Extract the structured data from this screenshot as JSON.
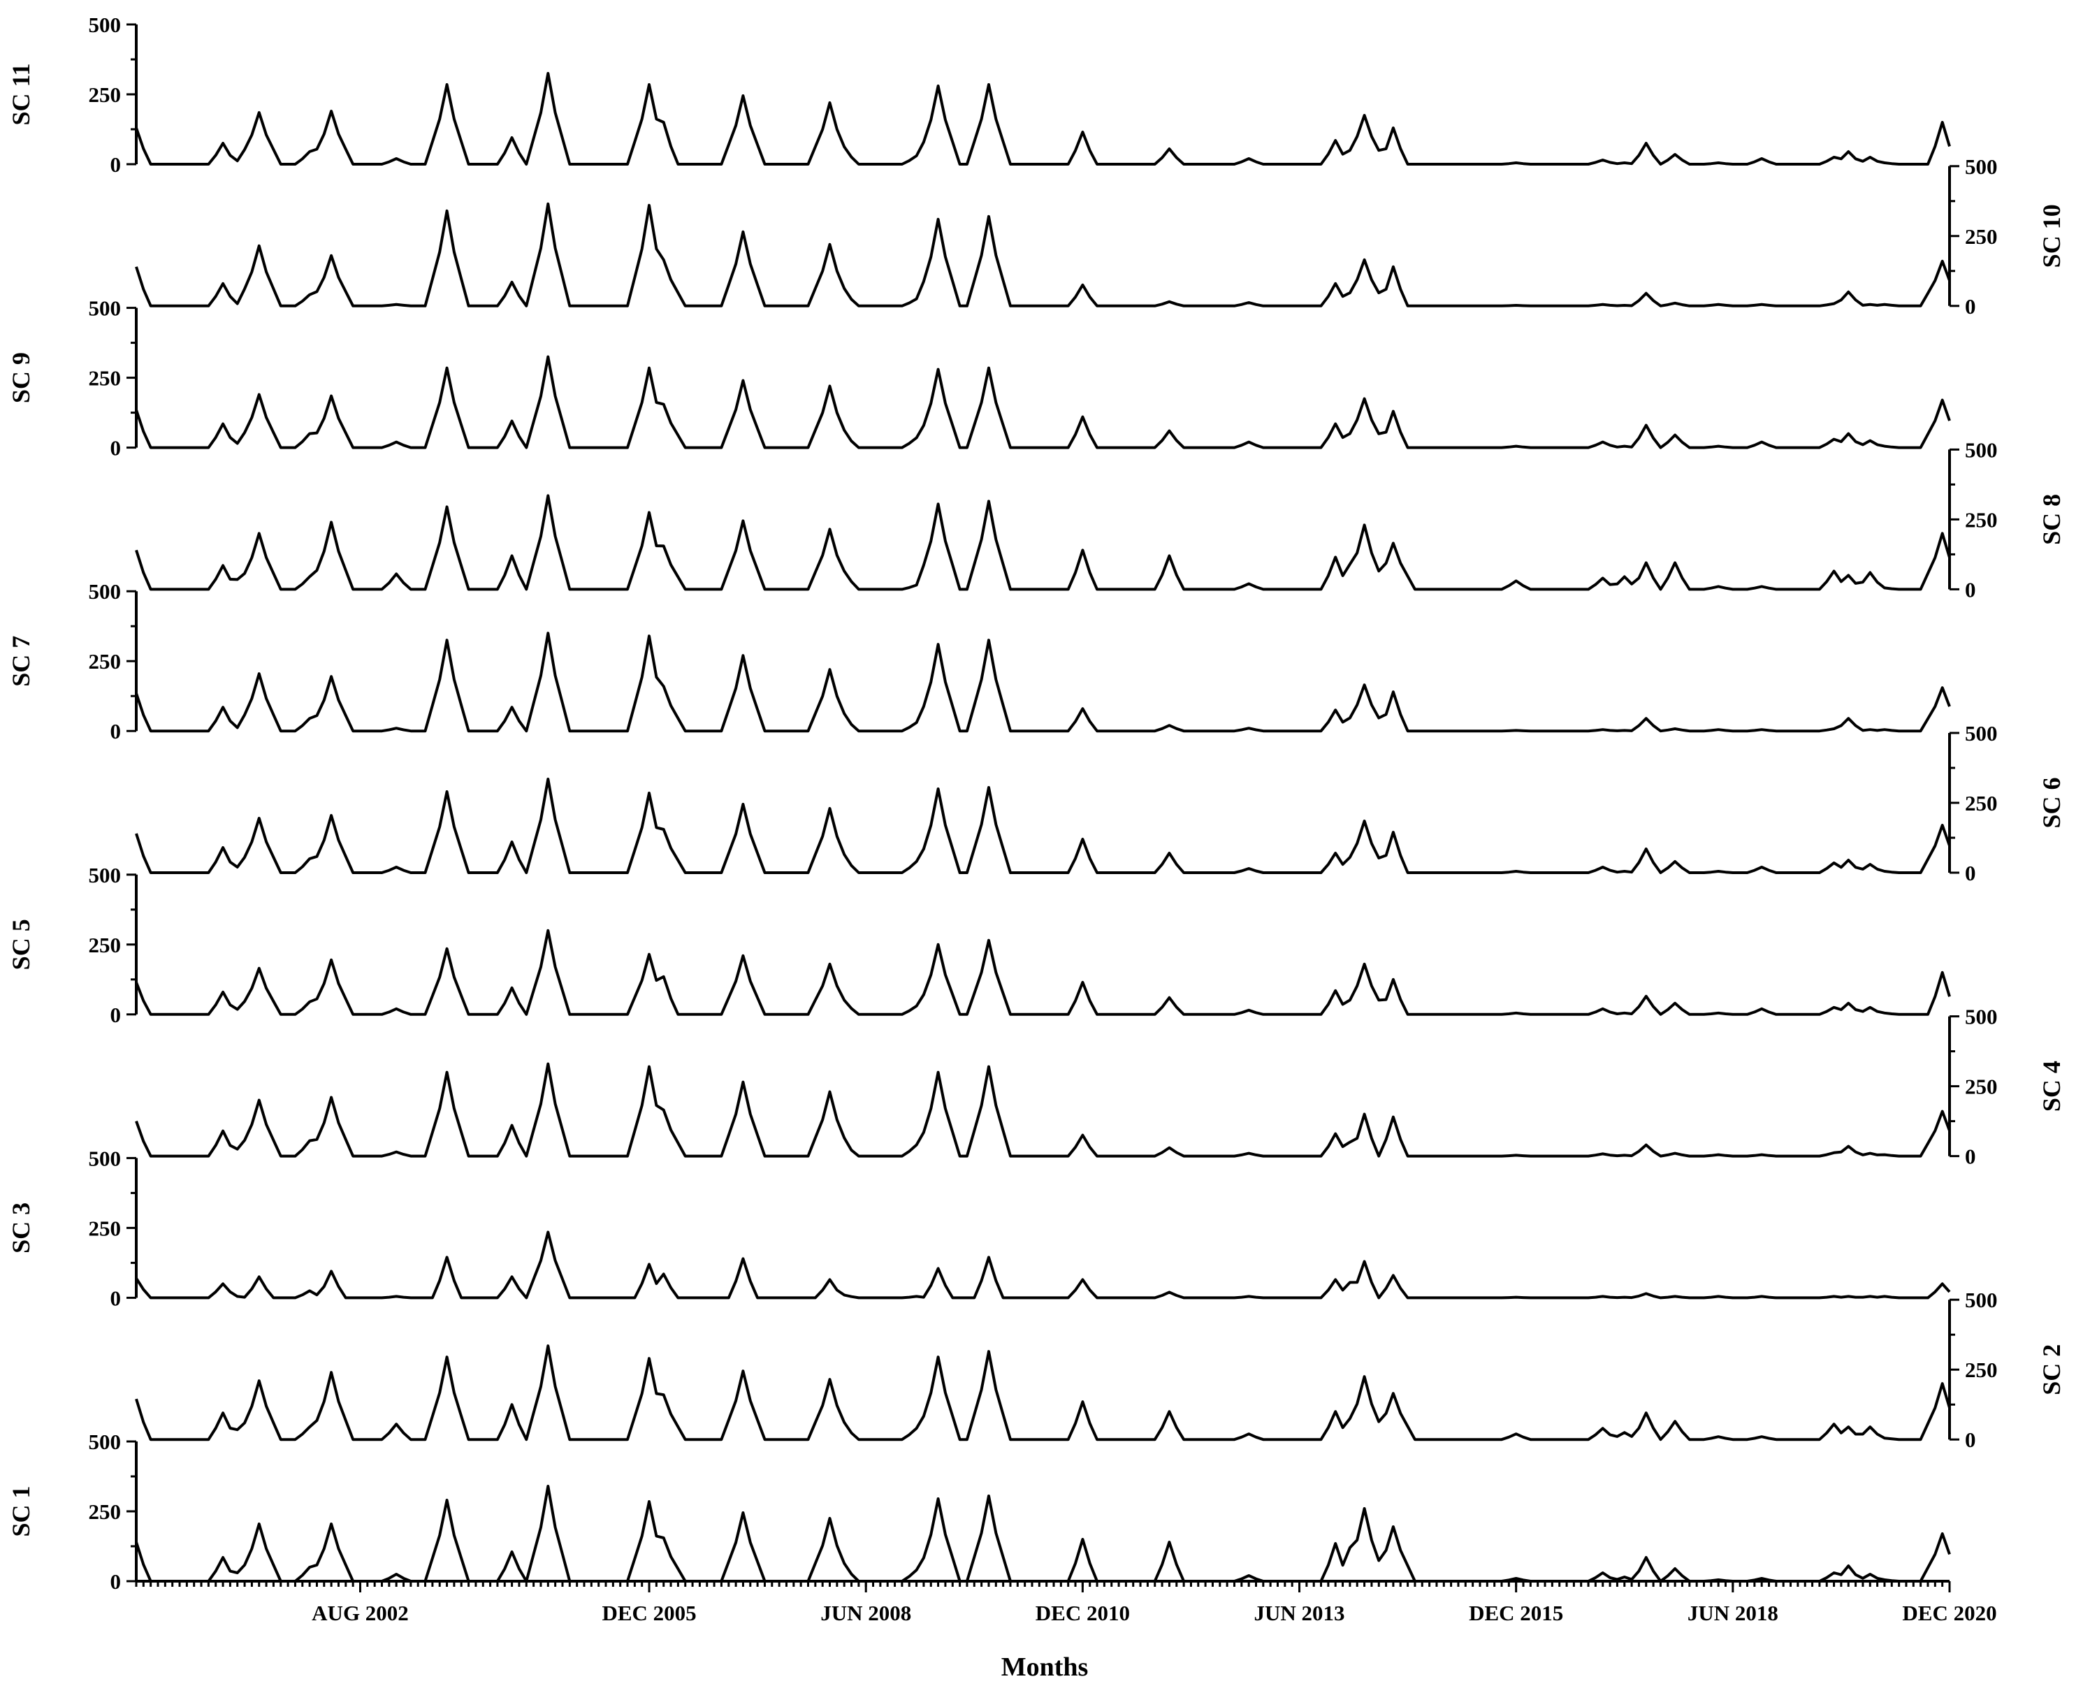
{
  "chart_data": {
    "type": "line",
    "xlabel": "Months",
    "x_range": [
      "JAN 2000",
      "DEC 2020"
    ],
    "x_ticks": [
      "AUG 2002",
      "DEC 2005",
      "JUN 2008",
      "DEC 2010",
      "JUN 2013",
      "DEC 2015",
      "JUN 2018",
      "DEC 2020"
    ],
    "y_ticks": [
      "0",
      "250",
      "500"
    ],
    "ylim": [
      0,
      500
    ],
    "grid": false,
    "legend": "none",
    "line_color": "#000000",
    "peak_months": [
      "2000-01",
      "2001-01",
      "2001-03",
      "2001-06",
      "2002-01",
      "2002-04",
      "2003-01",
      "2003-08",
      "2004-05",
      "2004-10",
      "2005-12",
      "2006-02",
      "2007-01",
      "2008-01",
      "2008-03",
      "2009-01",
      "2009-04",
      "2009-11",
      "2010-12",
      "2011-12",
      "2012-11",
      "2013-11",
      "2014-01",
      "2014-03",
      "2014-07",
      "2015-12",
      "2016-12",
      "2017-03",
      "2017-06",
      "2017-10",
      "2018-04",
      "2018-10",
      "2019-08",
      "2019-10",
      "2020-01",
      "2020-03",
      "2020-11"
    ],
    "panels": [
      {
        "label": "SC 11",
        "axis_side": "left",
        "peaks": [
          130,
          75,
          12,
          185,
          45,
          190,
          20,
          285,
          95,
          325,
          285,
          150,
          245,
          220,
          60,
          30,
          280,
          285,
          115,
          55,
          20,
          85,
          45,
          175,
          130,
          5,
          15,
          5,
          75,
          35,
          5,
          20,
          25,
          45,
          25,
          5,
          150
        ]
      },
      {
        "label": "SC 10",
        "axis_side": "right",
        "peaks": [
          140,
          80,
          8,
          215,
          40,
          180,
          5,
          340,
          85,
          365,
          360,
          165,
          265,
          220,
          55,
          25,
          310,
          320,
          75,
          15,
          12,
          80,
          30,
          165,
          140,
          2,
          5,
          2,
          45,
          10,
          5,
          5,
          8,
          50,
          5,
          5,
          160
        ]
      },
      {
        "label": "SC 9",
        "axis_side": "left",
        "peaks": [
          135,
          85,
          15,
          190,
          50,
          185,
          20,
          285,
          95,
          325,
          285,
          155,
          240,
          220,
          55,
          35,
          280,
          285,
          110,
          60,
          20,
          85,
          50,
          175,
          130,
          5,
          20,
          5,
          80,
          45,
          5,
          20,
          30,
          50,
          25,
          5,
          170
        ]
      },
      {
        "label": "SC 8",
        "axis_side": "right",
        "peaks": [
          140,
          85,
          35,
          200,
          45,
          240,
          55,
          295,
          120,
          335,
          275,
          155,
          245,
          215,
          65,
          15,
          305,
          315,
          140,
          120,
          20,
          115,
          90,
          230,
          165,
          30,
          40,
          45,
          95,
          95,
          10,
          10,
          65,
          50,
          60,
          5,
          200
        ]
      },
      {
        "label": "SC 7",
        "axis_side": "left",
        "peaks": [
          135,
          85,
          12,
          205,
          45,
          195,
          10,
          325,
          85,
          350,
          340,
          160,
          270,
          220,
          55,
          30,
          310,
          325,
          80,
          20,
          10,
          75,
          30,
          165,
          140,
          2,
          5,
          2,
          45,
          8,
          5,
          5,
          8,
          45,
          5,
          5,
          155
        ]
      },
      {
        "label": "SC 6",
        "axis_side": "right",
        "peaks": [
          140,
          90,
          20,
          195,
          50,
          205,
          20,
          290,
          110,
          335,
          285,
          155,
          245,
          230,
          60,
          40,
          300,
          305,
          120,
          70,
          15,
          70,
          55,
          185,
          145,
          5,
          20,
          5,
          85,
          40,
          5,
          20,
          35,
          45,
          30,
          5,
          170
        ]
      },
      {
        "label": "SC 5",
        "axis_side": "left",
        "peaks": [
          115,
          80,
          18,
          165,
          45,
          195,
          20,
          235,
          95,
          300,
          215,
          135,
          210,
          180,
          50,
          30,
          250,
          265,
          115,
          60,
          15,
          85,
          40,
          180,
          125,
          5,
          20,
          5,
          65,
          40,
          5,
          20,
          25,
          40,
          25,
          5,
          150
        ]
      },
      {
        "label": "SC 4",
        "axis_side": "right",
        "peaks": [
          125,
          90,
          25,
          200,
          55,
          210,
          15,
          300,
          110,
          330,
          320,
          165,
          265,
          230,
          50,
          40,
          300,
          320,
          75,
          30,
          10,
          80,
          50,
          150,
          140,
          3,
          8,
          3,
          40,
          10,
          5,
          5,
          12,
          35,
          10,
          5,
          160
        ]
      },
      {
        "label": "SC 3",
        "axis_side": "left",
        "peaks": [
          70,
          50,
          5,
          75,
          25,
          95,
          5,
          145,
          75,
          235,
          120,
          85,
          140,
          65,
          10,
          5,
          105,
          145,
          65,
          20,
          5,
          65,
          55,
          130,
          80,
          2,
          5,
          2,
          15,
          5,
          5,
          5,
          5,
          5,
          5,
          5,
          50
        ]
      },
      {
        "label": "SC 2",
        "axis_side": "right",
        "peaks": [
          145,
          95,
          35,
          210,
          45,
          240,
          55,
          295,
          125,
          335,
          290,
          160,
          245,
          215,
          55,
          40,
          295,
          315,
          135,
          100,
          20,
          100,
          75,
          225,
          165,
          20,
          40,
          25,
          95,
          65,
          10,
          10,
          55,
          45,
          45,
          5,
          200
        ]
      },
      {
        "label": "SC 1",
        "axis_side": "left",
        "peaks": [
          140,
          85,
          30,
          205,
          50,
          205,
          25,
          290,
          105,
          340,
          285,
          155,
          245,
          225,
          60,
          40,
          295,
          305,
          150,
          140,
          20,
          135,
          120,
          260,
          195,
          10,
          30,
          15,
          85,
          45,
          5,
          10,
          30,
          55,
          25,
          5,
          170
        ]
      }
    ]
  }
}
